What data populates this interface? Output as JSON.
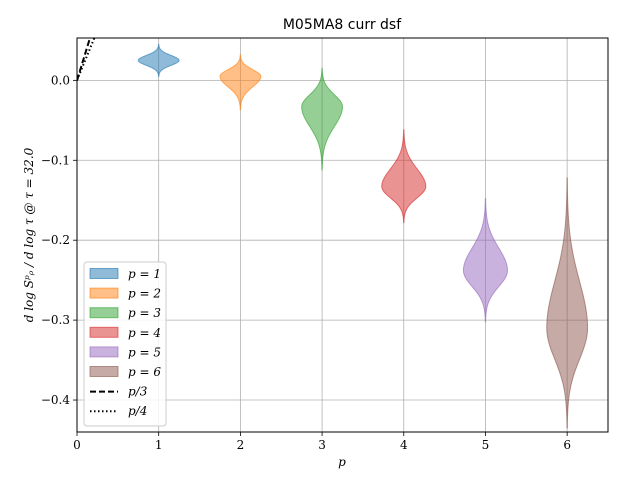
{
  "chart_data": {
    "type": "violin",
    "title": "M05MA8 curr dsf",
    "xlabel": "p",
    "ylabel": "d log Sᵖᵨ / d log τ @ τ = 32.0",
    "xlim": [
      0,
      6.5
    ],
    "ylim": [
      -0.44,
      0.053
    ],
    "xticks": [
      0,
      1,
      2,
      3,
      4,
      5,
      6
    ],
    "yticks": [
      0.0,
      -0.1,
      -0.2,
      -0.3,
      -0.4
    ],
    "ytick_labels": [
      "0.0",
      "−0.1",
      "−0.2",
      "−0.3",
      "−0.4"
    ],
    "grid": true,
    "legend_position": "lower-left",
    "series": [
      {
        "name": "p = 1",
        "x": 1,
        "center": 0.025,
        "min": 0.005,
        "max": 0.045,
        "halfwidth": 0.25,
        "color": "#1f77b4"
      },
      {
        "name": "p = 2",
        "x": 2,
        "center": 0.005,
        "min": -0.037,
        "max": 0.032,
        "halfwidth": 0.25,
        "color": "#ff7f0e"
      },
      {
        "name": "p = 3",
        "x": 3,
        "center": -0.033,
        "min": -0.112,
        "max": 0.015,
        "halfwidth": 0.25,
        "color": "#2ca02c"
      },
      {
        "name": "p = 4",
        "x": 4,
        "center": -0.133,
        "min": -0.178,
        "max": -0.062,
        "halfwidth": 0.27,
        "color": "#d62728"
      },
      {
        "name": "p = 5",
        "x": 5,
        "center": -0.238,
        "min": -0.302,
        "max": -0.148,
        "halfwidth": 0.27,
        "color": "#9467bd"
      },
      {
        "name": "p = 6",
        "x": 6,
        "center": -0.31,
        "min": -0.435,
        "max": -0.122,
        "halfwidth": 0.25,
        "color": "#8c564b"
      }
    ],
    "reference_lines": [
      {
        "name": "p/3",
        "style": "dashed",
        "slope": 0.3333
      },
      {
        "name": "p/4",
        "style": "dotted",
        "slope": 0.25
      }
    ]
  },
  "legend": {
    "entries": [
      "p = 1",
      "p = 2",
      "p = 3",
      "p = 4",
      "p = 5",
      "p = 6",
      "p/3",
      "p/4"
    ]
  }
}
